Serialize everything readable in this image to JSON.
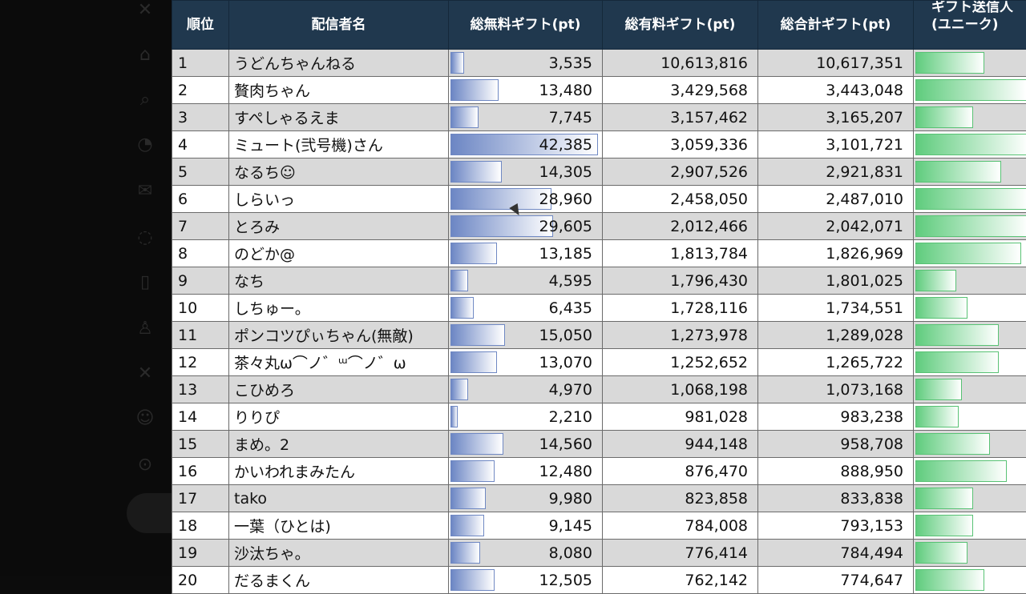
{
  "sidebar": {
    "icons": [
      "x-logo-icon",
      "home-icon",
      "search-icon",
      "notifications-icon",
      "messages-icon",
      "grok-icon",
      "bookmarks-icon",
      "communities-icon",
      "premium-icon",
      "profile-icon",
      "more-icon"
    ]
  },
  "table": {
    "headers": {
      "rank": "順位",
      "name": "配信者名",
      "free": "総無料ギフト(pt)",
      "paid": "総有料ギフト(pt)",
      "total": "総合計ギフト(pt)",
      "unique_line1": "ギフト送信人",
      "unique_line2": "(ユニーク)"
    },
    "rows": [
      {
        "rank": "1",
        "name": "うどんちゃんねる",
        "free": "3,535",
        "paid": "10,613,816",
        "total": "10,617,351",
        "free_pct": 0.08,
        "unique_pct": 0.6
      },
      {
        "rank": "2",
        "name": "贅肉ちゃん",
        "free": "13,480",
        "paid": "3,429,568",
        "total": "3,443,048",
        "free_pct": 0.32,
        "unique_pct": 0.98
      },
      {
        "rank": "3",
        "name": "すぺしゃるえま",
        "free": "7,745",
        "paid": "3,157,462",
        "total": "3,165,207",
        "free_pct": 0.18,
        "unique_pct": 0.5
      },
      {
        "rank": "4",
        "name": "ミュート(弐号機)さん",
        "free": "42,385",
        "paid": "3,059,336",
        "total": "3,101,721",
        "free_pct": 1.0,
        "unique_pct": 1.0
      },
      {
        "rank": "5",
        "name": "なるち☺",
        "free": "14,305",
        "paid": "2,907,526",
        "total": "2,921,831",
        "free_pct": 0.34,
        "unique_pct": 0.75
      },
      {
        "rank": "6",
        "name": "しらいっ",
        "free": "28,960",
        "paid": "2,458,050",
        "total": "2,487,010",
        "free_pct": 0.68,
        "unique_pct": 1.0
      },
      {
        "rank": "7",
        "name": "とろみ",
        "free": "29,605",
        "paid": "2,012,466",
        "total": "2,042,071",
        "free_pct": 0.69,
        "unique_pct": 1.0
      },
      {
        "rank": "8",
        "name": "のどか@",
        "free": "13,185",
        "paid": "1,813,784",
        "total": "1,826,969",
        "free_pct": 0.31,
        "unique_pct": 0.93
      },
      {
        "rank": "9",
        "name": "なち",
        "free": "4,595",
        "paid": "1,796,430",
        "total": "1,801,025",
        "free_pct": 0.11,
        "unique_pct": 0.35
      },
      {
        "rank": "10",
        "name": "しちゅー。",
        "free": "6,435",
        "paid": "1,728,116",
        "total": "1,734,551",
        "free_pct": 0.15,
        "unique_pct": 0.45
      },
      {
        "rank": "11",
        "name": "ポンコツぴぃちゃん(無敵)",
        "free": "15,050",
        "paid": "1,273,978",
        "total": "1,289,028",
        "free_pct": 0.36,
        "unique_pct": 0.73
      },
      {
        "rank": "12",
        "name": "茶々丸ω⌒ノ゛ᵚ⌒ノ゛ω",
        "free": "13,070",
        "paid": "1,252,652",
        "total": "1,265,722",
        "free_pct": 0.31,
        "unique_pct": 0.73
      },
      {
        "rank": "13",
        "name": "こひめろ",
        "free": "4,970",
        "paid": "1,068,198",
        "total": "1,073,168",
        "free_pct": 0.11,
        "unique_pct": 0.4
      },
      {
        "rank": "14",
        "name": "りりぴ",
        "free": "2,210",
        "paid": "981,028",
        "total": "983,238",
        "free_pct": 0.04,
        "unique_pct": 0.37
      },
      {
        "rank": "15",
        "name": "まめ。2",
        "free": "14,560",
        "paid": "944,148",
        "total": "958,708",
        "free_pct": 0.35,
        "unique_pct": 0.65
      },
      {
        "rank": "16",
        "name": "かいわれまみたん",
        "free": "12,480",
        "paid": "876,470",
        "total": "888,950",
        "free_pct": 0.29,
        "unique_pct": 0.8
      },
      {
        "rank": "17",
        "name": "tako",
        "free": "9,980",
        "paid": "823,858",
        "total": "833,838",
        "free_pct": 0.23,
        "unique_pct": 0.5
      },
      {
        "rank": "18",
        "name": "一葉（ひとは)",
        "free": "9,145",
        "paid": "784,008",
        "total": "793,153",
        "free_pct": 0.22,
        "unique_pct": 0.5
      },
      {
        "rank": "19",
        "name": "沙汰ちゃ。",
        "free": "8,080",
        "paid": "776,414",
        "total": "784,494",
        "free_pct": 0.19,
        "unique_pct": 0.45
      },
      {
        "rank": "20",
        "name": "だるまくん",
        "free": "12,505",
        "paid": "762,142",
        "total": "774,647",
        "free_pct": 0.29,
        "unique_pct": 0.6
      }
    ]
  }
}
